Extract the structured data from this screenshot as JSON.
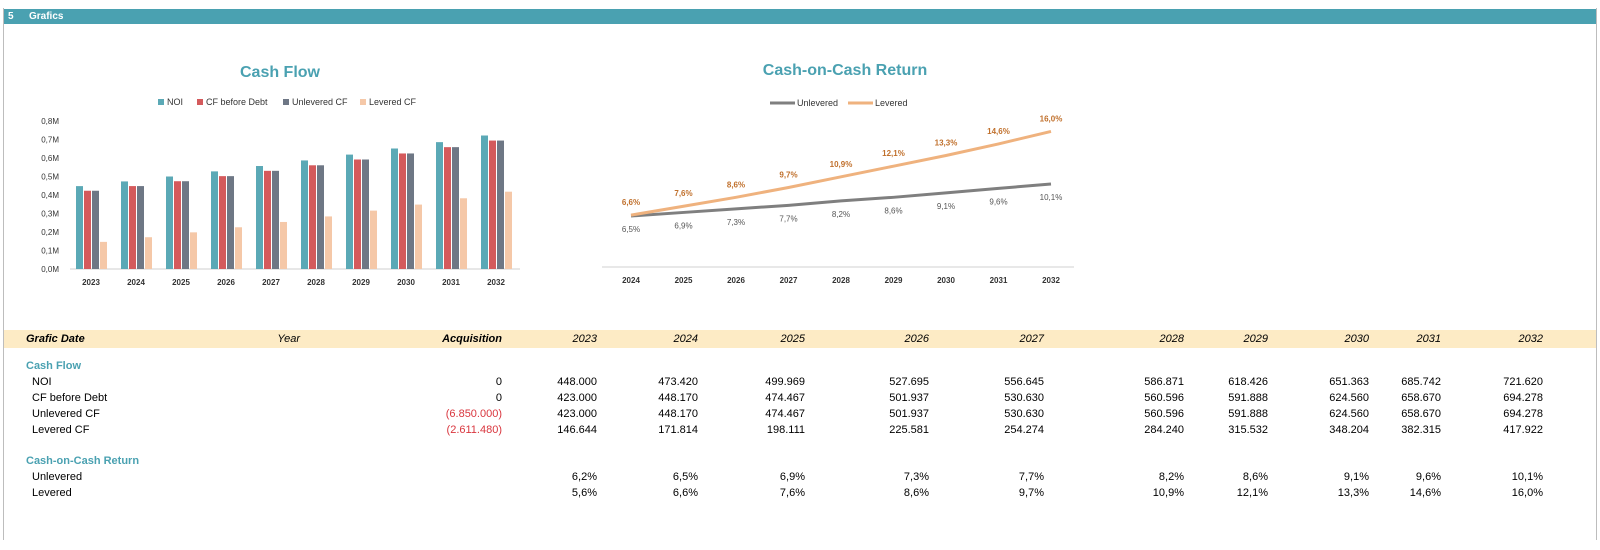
{
  "section": {
    "number": "5",
    "title": "Grafics"
  },
  "colors": {
    "noi": "#5ba9b6",
    "cf_before_debt": "#d45a5c",
    "unlevered_cf": "#6e7785",
    "levered_cf": "#f5c8a8",
    "line_unlevered": "#7f7f7f",
    "line_levered": "#efb27e",
    "label_levered": "#c0702c",
    "accent": "#4aa1b1"
  },
  "chart_data": [
    {
      "type": "bar",
      "title": "Cash Flow",
      "categories": [
        "2023",
        "2024",
        "2025",
        "2026",
        "2027",
        "2028",
        "2029",
        "2030",
        "2031",
        "2032"
      ],
      "series": [
        {
          "name": "NOI",
          "values": [
            448000,
            473420,
            499969,
            527695,
            556645,
            586871,
            618426,
            651363,
            685742,
            721620
          ]
        },
        {
          "name": "CF before Debt",
          "values": [
            423000,
            448170,
            474467,
            501937,
            530630,
            560596,
            591888,
            624560,
            658670,
            694278
          ]
        },
        {
          "name": "Unlevered CF",
          "values": [
            423000,
            448170,
            474467,
            501937,
            530630,
            560596,
            591888,
            624560,
            658670,
            694278
          ]
        },
        {
          "name": "Levered CF",
          "values": [
            146644,
            171814,
            198111,
            225581,
            254274,
            284240,
            315532,
            348204,
            382315,
            417922
          ]
        }
      ],
      "ylim": [
        0,
        800000
      ],
      "ytick_values": [
        0,
        100000,
        200000,
        300000,
        400000,
        500000,
        600000,
        700000,
        800000
      ],
      "ytick_labels": [
        "0,0M",
        "0,1M",
        "0,2M",
        "0,3M",
        "0,4M",
        "0,5M",
        "0,6M",
        "0,7M",
        "0,8M"
      ],
      "legend": "top"
    },
    {
      "type": "line",
      "title": "Cash-on-Cash Return",
      "categories": [
        "2024",
        "2025",
        "2026",
        "2027",
        "2028",
        "2029",
        "2030",
        "2031",
        "2032"
      ],
      "series": [
        {
          "name": "Unlevered",
          "values": [
            6.5,
            6.9,
            7.3,
            7.7,
            8.2,
            8.6,
            9.1,
            9.6,
            10.1
          ],
          "labels": [
            "6,5%",
            "6,9%",
            "7,3%",
            "7,7%",
            "8,2%",
            "8,6%",
            "9,1%",
            "9,6%",
            "10,1%"
          ]
        },
        {
          "name": "Levered",
          "values": [
            6.6,
            7.6,
            8.6,
            9.7,
            10.9,
            12.1,
            13.3,
            14.6,
            16.0
          ],
          "labels": [
            "6,6%",
            "7,6%",
            "8,6%",
            "9,7%",
            "10,9%",
            "12,1%",
            "13,3%",
            "14,6%",
            "16,0%"
          ]
        }
      ],
      "legend": "top"
    }
  ],
  "table": {
    "header": {
      "label": "Grafic Date",
      "year": "Year",
      "acquisition": "Acquisition",
      "years": [
        "2023",
        "2024",
        "2025",
        "2026",
        "2027",
        "2028",
        "2029",
        "2030",
        "2031",
        "2032"
      ]
    },
    "sections": [
      {
        "title": "Cash Flow",
        "rows": [
          {
            "label": "NOI",
            "acq": "0",
            "values": [
              "448.000",
              "473.420",
              "499.969",
              "527.695",
              "556.645",
              "586.871",
              "618.426",
              "651.363",
              "685.742",
              "721.620"
            ]
          },
          {
            "label": "CF before Debt",
            "acq": "0",
            "values": [
              "423.000",
              "448.170",
              "474.467",
              "501.937",
              "530.630",
              "560.596",
              "591.888",
              "624.560",
              "658.670",
              "694.278"
            ]
          },
          {
            "label": "Unlevered CF",
            "acq": "(6.850.000)",
            "values": [
              "423.000",
              "448.170",
              "474.467",
              "501.937",
              "530.630",
              "560.596",
              "591.888",
              "624.560",
              "658.670",
              "694.278"
            ]
          },
          {
            "label": "Levered CF",
            "acq": "(2.611.480)",
            "values": [
              "146.644",
              "171.814",
              "198.111",
              "225.581",
              "254.274",
              "284.240",
              "315.532",
              "348.204",
              "382.315",
              "417.922"
            ]
          }
        ]
      },
      {
        "title": "Cash-on-Cash Return",
        "rows": [
          {
            "label": "Unlevered",
            "acq": "",
            "values": [
              "6,2%",
              "6,5%",
              "6,9%",
              "7,3%",
              "7,7%",
              "8,2%",
              "8,6%",
              "9,1%",
              "9,6%",
              "10,1%"
            ]
          },
          {
            "label": "Levered",
            "acq": "",
            "values": [
              "5,6%",
              "6,6%",
              "7,6%",
              "8,6%",
              "9,7%",
              "10,9%",
              "12,1%",
              "13,3%",
              "14,6%",
              "16,0%"
            ]
          }
        ]
      }
    ]
  }
}
